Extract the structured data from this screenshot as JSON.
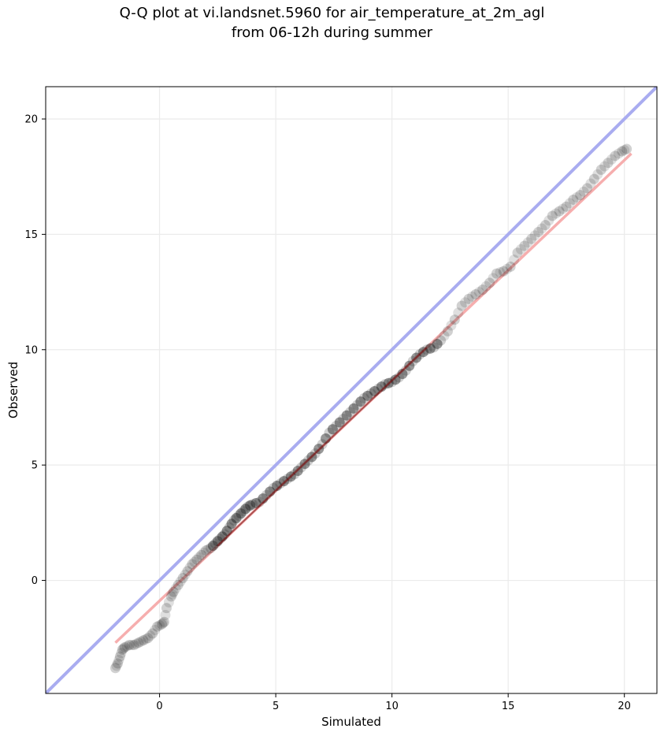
{
  "chart_data": {
    "type": "scatter",
    "title": [
      "Q-Q plot at vi.landsnet.5960 for air_temperature_at_2m_agl",
      "from 06-12h during summer"
    ],
    "xlabel": "Simulated",
    "ylabel": "Observed",
    "xlim": [
      -4.9,
      21.4
    ],
    "ylim": [
      -4.9,
      21.4
    ],
    "xticks": [
      0,
      5,
      10,
      15,
      20
    ],
    "yticks": [
      0,
      5,
      10,
      15,
      20
    ],
    "grid": true,
    "identity_line": {
      "from": [
        -4.9,
        -4.9
      ],
      "to": [
        21.4,
        21.4
      ],
      "color": "#a9acf0"
    },
    "fit_line": {
      "from": [
        -1.9,
        -2.7
      ],
      "to": [
        20.3,
        18.5
      ],
      "color": "#f5a5a5"
    },
    "qq_points": [
      [
        -1.9,
        -3.8
      ],
      [
        -1.8,
        -3.6
      ],
      [
        -1.7,
        -3.3
      ],
      [
        -1.6,
        -3.0
      ],
      [
        -1.5,
        -2.9
      ],
      [
        -1.3,
        -2.8
      ],
      [
        -1.1,
        -2.8
      ],
      [
        -0.9,
        -2.7
      ],
      [
        -0.7,
        -2.6
      ],
      [
        -0.5,
        -2.5
      ],
      [
        -0.3,
        -2.3
      ],
      [
        -0.1,
        -2.0
      ],
      [
        0.1,
        -1.9
      ],
      [
        0.2,
        -1.8
      ],
      [
        0.3,
        -1.2
      ],
      [
        0.5,
        -0.7
      ],
      [
        0.6,
        -0.5
      ],
      [
        0.8,
        -0.2
      ],
      [
        1.0,
        0.1
      ],
      [
        1.2,
        0.4
      ],
      [
        1.4,
        0.7
      ],
      [
        1.6,
        0.9
      ],
      [
        1.8,
        1.1
      ],
      [
        2.0,
        1.3
      ],
      [
        2.2,
        1.4
      ],
      [
        2.4,
        1.6
      ],
      [
        2.6,
        1.8
      ],
      [
        2.8,
        2.0
      ],
      [
        3.0,
        2.3
      ],
      [
        3.2,
        2.6
      ],
      [
        3.4,
        2.8
      ],
      [
        3.6,
        3.0
      ],
      [
        3.8,
        3.2
      ],
      [
        4.0,
        3.3
      ],
      [
        4.3,
        3.4
      ],
      [
        4.6,
        3.7
      ],
      [
        4.9,
        4.0
      ],
      [
        5.2,
        4.2
      ],
      [
        5.5,
        4.4
      ],
      [
        5.8,
        4.6
      ],
      [
        6.1,
        4.9
      ],
      [
        6.4,
        5.2
      ],
      [
        6.7,
        5.5
      ],
      [
        7.0,
        5.9
      ],
      [
        7.3,
        6.4
      ],
      [
        7.6,
        6.7
      ],
      [
        7.9,
        7.0
      ],
      [
        8.2,
        7.3
      ],
      [
        8.5,
        7.6
      ],
      [
        8.8,
        7.9
      ],
      [
        9.1,
        8.1
      ],
      [
        9.4,
        8.3
      ],
      [
        9.7,
        8.5
      ],
      [
        10.0,
        8.6
      ],
      [
        10.3,
        8.8
      ],
      [
        10.6,
        9.1
      ],
      [
        10.9,
        9.5
      ],
      [
        11.2,
        9.8
      ],
      [
        11.5,
        10.0
      ],
      [
        11.8,
        10.1
      ],
      [
        12.1,
        10.4
      ],
      [
        12.4,
        10.8
      ],
      [
        12.7,
        11.3
      ],
      [
        13.0,
        11.9
      ],
      [
        13.3,
        12.2
      ],
      [
        13.6,
        12.4
      ],
      [
        13.9,
        12.6
      ],
      [
        14.2,
        12.9
      ],
      [
        14.5,
        13.3
      ],
      [
        14.8,
        13.4
      ],
      [
        15.1,
        13.6
      ],
      [
        15.4,
        14.2
      ],
      [
        15.7,
        14.5
      ],
      [
        16.0,
        14.8
      ],
      [
        16.3,
        15.1
      ],
      [
        16.6,
        15.4
      ],
      [
        16.9,
        15.8
      ],
      [
        17.2,
        16.0
      ],
      [
        17.5,
        16.2
      ],
      [
        17.8,
        16.5
      ],
      [
        18.1,
        16.7
      ],
      [
        18.4,
        17.0
      ],
      [
        18.7,
        17.4
      ],
      [
        19.0,
        17.8
      ],
      [
        19.3,
        18.1
      ],
      [
        19.6,
        18.4
      ],
      [
        19.9,
        18.6
      ],
      [
        20.1,
        18.7
      ]
    ]
  }
}
